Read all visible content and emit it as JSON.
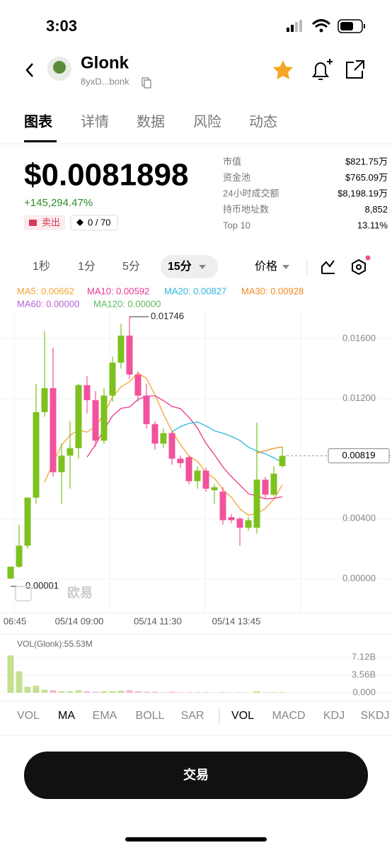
{
  "status": {
    "time": "3:03"
  },
  "header": {
    "name": "Glonk",
    "address": "8yxD...bonk"
  },
  "tabs": [
    "图表",
    "详情",
    "数据",
    "风险",
    "动态"
  ],
  "price": {
    "value": "$0.0081898",
    "change": "+145,294.47%",
    "sell": "卖出",
    "badge": "0 / 70"
  },
  "stats": [
    [
      "市值",
      "$821.75万"
    ],
    [
      "资金池",
      "$765.09万"
    ],
    [
      "24小时成交额",
      "$8,198.19万"
    ],
    [
      "持币地址数",
      "8,852"
    ],
    [
      "Top 10",
      "13.11%"
    ]
  ],
  "intervals": [
    "1秒",
    "1分",
    "5分",
    "15分"
  ],
  "price_type": "价格",
  "ma_legend": [
    {
      "label": "MA5: 0.00662",
      "color": "#f0a431",
      "period": 5
    },
    {
      "label": "MA10: 0.00592",
      "color": "#e8368f",
      "period": 10
    },
    {
      "label": "MA20: 0.00827",
      "color": "#2bb8d8",
      "period": 20
    },
    {
      "label": "MA30: 0.00928",
      "color": "#f28a1e",
      "period": 30
    },
    {
      "label": "MA60: 0.00000",
      "color": "#b461d4",
      "period": 60
    },
    {
      "label": "MA120: 0.00000",
      "color": "#5db85d",
      "period": 120
    }
  ],
  "chart": {
    "ylim": [
      0,
      0.016
    ],
    "yticks": [
      {
        "value": 0,
        "label": "0.00000"
      },
      {
        "value": 0.004,
        "label": "0.00400"
      },
      {
        "value": 0.012,
        "label": "0.01200"
      },
      {
        "value": 0.016,
        "label": "0.01600"
      }
    ],
    "current": 0.00819,
    "xlabels": [
      "06:45",
      "05/14 09:00",
      "05/14 11:30",
      "05/14 13:45"
    ],
    "watermark": "欧易",
    "up_color": "#7cc11e",
    "down_color": "#f2529c",
    "kline": [
      [
        1e-05,
        0.0008,
        1e-05,
        0.0008
      ],
      [
        0.0008,
        0.0036,
        0.0007,
        0.0022
      ],
      [
        0.0022,
        0.0054,
        0.002,
        0.0054
      ],
      [
        0.0054,
        0.013,
        0.005,
        0.0111
      ],
      [
        0.0111,
        0.0165,
        0.0108,
        0.0127
      ],
      [
        0.0127,
        0.0154,
        0.0068,
        0.0071
      ],
      [
        0.0071,
        0.009,
        0.005,
        0.0082
      ],
      [
        0.0082,
        0.0105,
        0.006,
        0.0087
      ],
      [
        0.0087,
        0.013,
        0.008,
        0.0129
      ],
      [
        0.0129,
        0.0135,
        0.011,
        0.0119
      ],
      [
        0.0119,
        0.0125,
        0.0088,
        0.0092
      ],
      [
        0.0092,
        0.0127,
        0.009,
        0.0122
      ],
      [
        0.0122,
        0.0148,
        0.0118,
        0.0144
      ],
      [
        0.0144,
        0.017,
        0.014,
        0.0162
      ],
      [
        0.0162,
        0.01746,
        0.0133,
        0.0136
      ],
      [
        0.0136,
        0.0138,
        0.0118,
        0.0122
      ],
      [
        0.0122,
        0.013,
        0.01,
        0.0103
      ],
      [
        0.0103,
        0.0105,
        0.0086,
        0.009
      ],
      [
        0.009,
        0.01,
        0.0087,
        0.0097
      ],
      [
        0.0097,
        0.0098,
        0.0076,
        0.008
      ],
      [
        0.008,
        0.0082,
        0.0074,
        0.0077
      ],
      [
        0.0081,
        0.0082,
        0.0063,
        0.0065
      ],
      [
        0.0065,
        0.0075,
        0.006,
        0.0072
      ],
      [
        0.0072,
        0.0074,
        0.0058,
        0.006
      ],
      [
        0.0059,
        0.0063,
        0.005,
        0.0061
      ],
      [
        0.0058,
        0.0061,
        0.0036,
        0.0039
      ],
      [
        0.0041,
        0.0043,
        0.0037,
        0.0039
      ],
      [
        0.004,
        0.0041,
        0.0022,
        0.0034
      ],
      [
        0.0034,
        0.0041,
        0.0032,
        0.0039
      ],
      [
        0.0034,
        0.0104,
        0.003,
        0.0066
      ],
      [
        0.0066,
        0.0068,
        0.0053,
        0.0056
      ],
      [
        0.0056,
        0.0075,
        0.0055,
        0.007
      ],
      [
        0.0075,
        0.0088,
        0.0074,
        0.00819
      ]
    ]
  },
  "volume": {
    "label": "VOL(Glonk):55.53M",
    "ylim": [
      0,
      7.12
    ],
    "yticks": [
      {
        "value": 7.12,
        "label": "7.12B"
      },
      {
        "value": 3.56,
        "label": "3.56B"
      },
      {
        "value": 0,
        "label": "0.000"
      }
    ],
    "values": [
      7.5,
      4.3,
      1.2,
      1.4,
      0.6,
      0.5,
      0.3,
      0.3,
      0.5,
      0.3,
      0.2,
      0.3,
      0.3,
      0.4,
      0.5,
      0.3,
      0.2,
      0.2,
      0.1,
      0.2,
      0.1,
      0.1,
      0.1,
      0.1,
      0.05,
      0.1,
      0.05,
      0.1,
      0.05,
      0.3,
      0.1,
      0.1,
      0.1
    ]
  },
  "indicators": [
    "VOL",
    "MA",
    "EMA",
    "BOLL",
    "SAR",
    "VOL",
    "MACD",
    "KDJ",
    "SKDJ"
  ],
  "button": "交易"
}
